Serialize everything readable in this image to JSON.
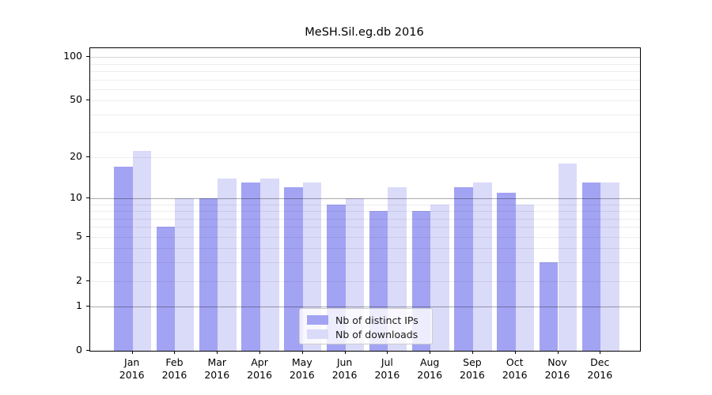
{
  "figure": {
    "title": "MeSH.Sil.eg.db 2016",
    "background_color": "#ffffff"
  },
  "chart_data": {
    "type": "bar",
    "title": "MeSH.Sil.eg.db 2016",
    "categories": [
      "Jan",
      "Feb",
      "Mar",
      "Apr",
      "May",
      "Jun",
      "Jul",
      "Aug",
      "Sep",
      "Oct",
      "Nov",
      "Dec"
    ],
    "category_year_line": "2016",
    "series": [
      {
        "name": "Nb of distinct IPs",
        "color": "#a3a3f3",
        "values": [
          17,
          6,
          10,
          13,
          12,
          9,
          8,
          8,
          12,
          11,
          3,
          13
        ]
      },
      {
        "name": "Nb of downloads",
        "color": "#dadaf9",
        "values": [
          22,
          10,
          14,
          14,
          13,
          10,
          12,
          9,
          13,
          9,
          18,
          13
        ]
      }
    ],
    "xlabel": "",
    "ylabel": "",
    "y_scale": "log1p",
    "ylim": [
      0,
      115
    ],
    "y_tick_values": [
      0,
      1,
      2,
      5,
      10,
      20,
      50,
      100
    ],
    "y_tick_labels": [
      "0",
      "1",
      "2",
      "5",
      "10",
      "20",
      "50",
      "100"
    ],
    "y_major_gridlines": [
      1,
      10
    ],
    "y_semi_gridlines": [
      100
    ],
    "y_minor_gridlines": [
      2,
      3,
      4,
      5,
      6,
      7,
      8,
      9,
      20,
      30,
      40,
      50,
      60,
      70,
      80,
      90
    ],
    "grid": "on",
    "legend_position": "lower-center",
    "legend_entries": [
      "Nb of distinct IPs",
      "Nb of downloads"
    ]
  }
}
